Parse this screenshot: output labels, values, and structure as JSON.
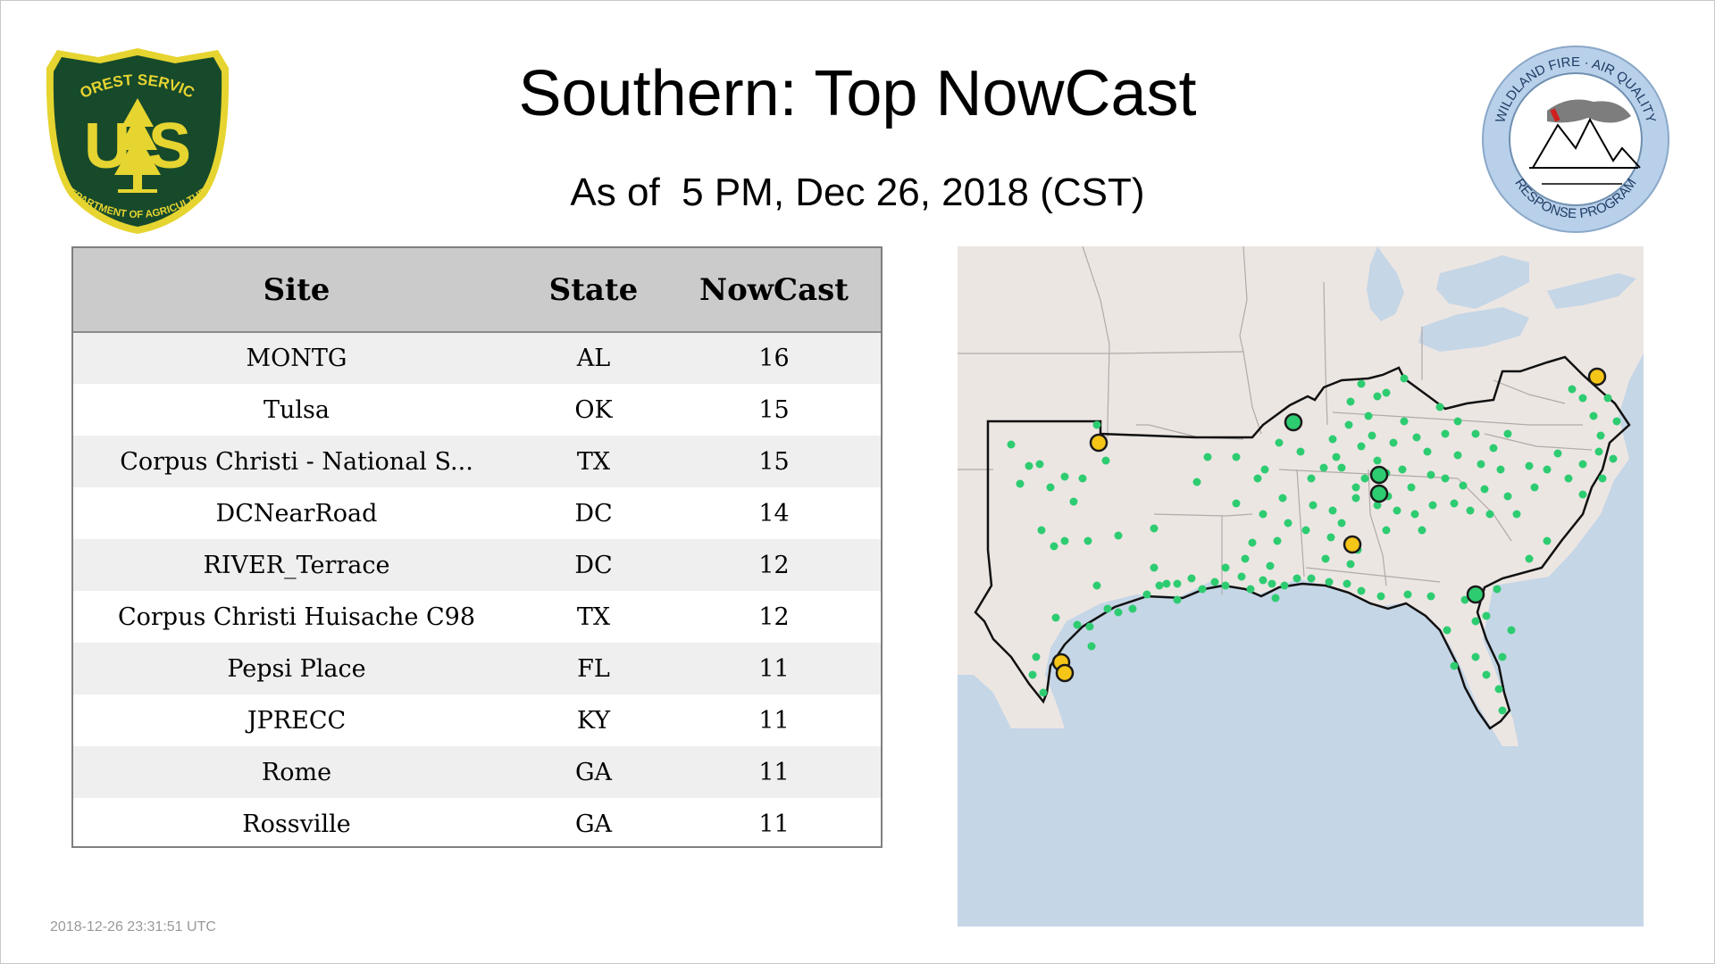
{
  "header": {
    "title": "Southern: Top NowCast",
    "subtitle": "As of  5 PM, Dec 26, 2018 (CST)"
  },
  "logos": {
    "forest_service": {
      "top_text": "FOREST SERVICE",
      "letters": "U S",
      "bottom_text": "DEPARTMENT OF AGRICULTURE"
    },
    "wfaqrp": {
      "ring_text_top": "WILDLAND FIRE · AIR QUALITY",
      "ring_text_bottom": "RESPONSE PROGRAM"
    }
  },
  "table": {
    "headers": [
      "Site",
      "State",
      "NowCast"
    ],
    "rows": [
      [
        "MONTG",
        "AL",
        "16"
      ],
      [
        "Tulsa",
        "OK",
        "15"
      ],
      [
        "Corpus Christi - National S...",
        "TX",
        "15"
      ],
      [
        "DCNearRoad",
        "DC",
        "14"
      ],
      [
        "RIVER_Terrace",
        "DC",
        "12"
      ],
      [
        "Corpus Christi Huisache C98",
        "TX",
        "12"
      ],
      [
        "Pepsi Place",
        "FL",
        "11"
      ],
      [
        "JPRECC",
        "KY",
        "11"
      ],
      [
        "Rome",
        "GA",
        "11"
      ],
      [
        "Rossville",
        "GA",
        "11"
      ]
    ]
  },
  "map": {
    "colors": {
      "land": "#ece6e3",
      "water": "#c5d6e6",
      "good": "#2ecc71",
      "moderate": "#f5c518"
    }
  },
  "footer": {
    "timestamp": "2018-12-26 23:31:51 UTC"
  }
}
